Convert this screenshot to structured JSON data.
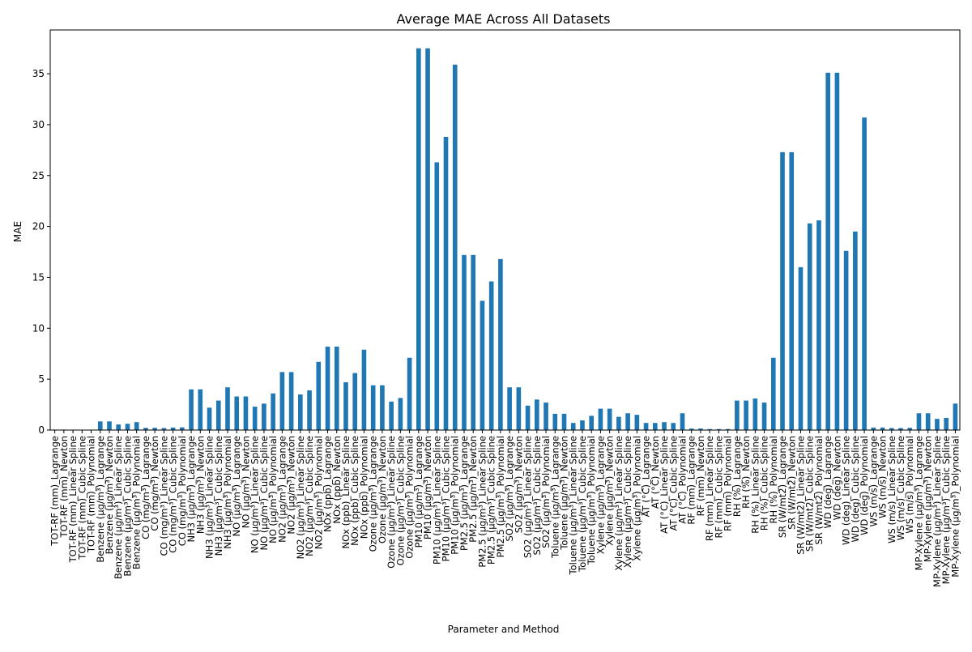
{
  "chart_data": {
    "type": "bar",
    "title": "Average MAE Across All Datasets",
    "xlabel": "Parameter and Method",
    "ylabel": "MAE",
    "ylim": [
      0,
      39.3
    ],
    "yticks": [
      0,
      5,
      10,
      15,
      20,
      25,
      30,
      35
    ],
    "ytick_labels": [
      "0",
      "5",
      "10",
      "15",
      "20",
      "25",
      "30",
      "35"
    ],
    "grid": false,
    "legend": "none",
    "bar_color": "#1f77b4",
    "categories": [
      "TOT-RF (mm)_Lagrange",
      "TOT-RF (mm)_Newton",
      "TOT-RF (mm)_Linear Spline",
      "TOT-RF (mm)_Cubic Spline",
      "TOT-RF (mm)_Polynomial",
      "Benzene (µg/m³)_Lagrange",
      "Benzene (µg/m³)_Newton",
      "Benzene (µg/m³)_Linear Spline",
      "Benzene (µg/m³)_Cubic Spline",
      "Benzene (µg/m³)_Polynomial",
      "CO (mg/m³)_Lagrange",
      "CO (mg/m³)_Newton",
      "CO (mg/m³)_Linear Spline",
      "CO (mg/m³)_Cubic Spline",
      "CO (mg/m³)_Polynomial",
      "NH3 (µg/m³)_Lagrange",
      "NH3 (µg/m³)_Newton",
      "NH3 (µg/m³)_Linear Spline",
      "NH3 (µg/m³)_Cubic Spline",
      "NH3 (µg/m³)_Polynomial",
      "NO (µg/m³)_Lagrange",
      "NO (µg/m³)_Newton",
      "NO (µg/m³)_Linear Spline",
      "NO (µg/m³)_Cubic Spline",
      "NO (µg/m³)_Polynomial",
      "NO2 (µg/m³)_Lagrange",
      "NO2 (µg/m³)_Newton",
      "NO2 (µg/m³)_Linear Spline",
      "NO2 (µg/m³)_Cubic Spline",
      "NO2 (µg/m³)_Polynomial",
      "NOx (ppb)_Lagrange",
      "NOx (ppb)_Newton",
      "NOx (ppb)_Linear Spline",
      "NOx (ppb)_Cubic Spline",
      "NOx (ppb)_Polynomial",
      "Ozone (µg/m³)_Lagrange",
      "Ozone (µg/m³)_Newton",
      "Ozone (µg/m³)_Linear Spline",
      "Ozone (µg/m³)_Cubic Spline",
      "Ozone (µg/m³)_Polynomial",
      "PM10 (µg/m³)_Lagrange",
      "PM10 (µg/m³)_Newton",
      "PM10 (µg/m³)_Linear Spline",
      "PM10 (µg/m³)_Cubic Spline",
      "PM10 (µg/m³)_Polynomial",
      "PM2.5 (µg/m³)_Lagrange",
      "PM2.5 (µg/m³)_Newton",
      "PM2.5 (µg/m³)_Linear Spline",
      "PM2.5 (µg/m³)_Cubic Spline",
      "PM2.5 (µg/m³)_Polynomial",
      "SO2 (µg/m³)_Lagrange",
      "SO2 (µg/m³)_Newton",
      "SO2 (µg/m³)_Linear Spline",
      "SO2 (µg/m³)_Cubic Spline",
      "SO2 (µg/m³)_Polynomial",
      "Toluene (µg/m³)_Lagrange",
      "Toluene (µg/m³)_Newton",
      "Toluene (µg/m³)_Linear Spline",
      "Toluene (µg/m³)_Cubic Spline",
      "Toluene (µg/m³)_Polynomial",
      "Xylene (µg/m³)_Lagrange",
      "Xylene (µg/m³)_Newton",
      "Xylene (µg/m³)_Linear Spline",
      "Xylene (µg/m³)_Cubic Spline",
      "Xylene (µg/m³)_Polynomial",
      "AT (°C)_Lagrange",
      "AT (°C)_Newton",
      "AT (°C)_Linear Spline",
      "AT (°C)_Cubic Spline",
      "AT (°C)_Polynomial",
      "RF (mm)_Lagrange",
      "RF (mm)_Newton",
      "RF (mm)_Linear Spline",
      "RF (mm)_Cubic Spline",
      "RF (mm)_Polynomial",
      "RH (%)_Lagrange",
      "RH (%)_Newton",
      "RH (%)_Linear Spline",
      "RH (%)_Cubic Spline",
      "RH (%)_Polynomial",
      "SR (W/mt2)_Lagrange",
      "SR (W/mt2)_Newton",
      "SR (W/mt2)_Linear Spline",
      "SR (W/mt2)_Cubic Spline",
      "SR (W/mt2)_Polynomial",
      "WD (deg)_Lagrange",
      "WD (deg)_Newton",
      "WD (deg)_Linear Spline",
      "WD (deg)_Cubic Spline",
      "WD (deg)_Polynomial",
      "WS (m/s)_Lagrange",
      "WS (m/s)_Newton",
      "WS (m/s)_Linear Spline",
      "WS (m/s)_Cubic Spline",
      "WS (m/s)_Polynomial",
      "MP-Xylene (µg/m³)_Lagrange",
      "MP-Xylene (µg/m³)_Newton",
      "MP-Xylene (µg/m³)_Linear Spline",
      "MP-Xylene (µg/m³)_Cubic Spline",
      "MP-Xylene (µg/m³)_Polynomial"
    ],
    "values": [
      0.05,
      0.05,
      0.0,
      0.0,
      0.0,
      0.85,
      0.85,
      0.55,
      0.62,
      0.78,
      0.22,
      0.22,
      0.2,
      0.25,
      0.27,
      4.0,
      4.0,
      2.2,
      2.9,
      4.2,
      3.3,
      3.3,
      2.3,
      2.6,
      3.6,
      5.7,
      5.7,
      3.5,
      3.9,
      6.7,
      8.2,
      8.2,
      4.7,
      5.6,
      7.9,
      4.4,
      4.4,
      2.8,
      3.15,
      7.1,
      37.5,
      37.5,
      26.3,
      28.8,
      35.9,
      17.2,
      17.2,
      12.7,
      14.6,
      16.8,
      4.2,
      4.2,
      2.4,
      3.0,
      2.7,
      1.6,
      1.6,
      0.7,
      0.95,
      1.4,
      2.1,
      2.1,
      1.3,
      1.65,
      1.5,
      0.7,
      0.7,
      0.78,
      0.7,
      1.65,
      0.15,
      0.15,
      0.1,
      0.1,
      0.1,
      2.9,
      2.9,
      3.1,
      2.7,
      7.1,
      27.3,
      27.3,
      16.0,
      20.3,
      20.6,
      35.1,
      35.1,
      17.6,
      19.5,
      30.7,
      0.25,
      0.25,
      0.2,
      0.2,
      0.22,
      1.65,
      1.65,
      1.1,
      1.2,
      2.6
    ]
  }
}
